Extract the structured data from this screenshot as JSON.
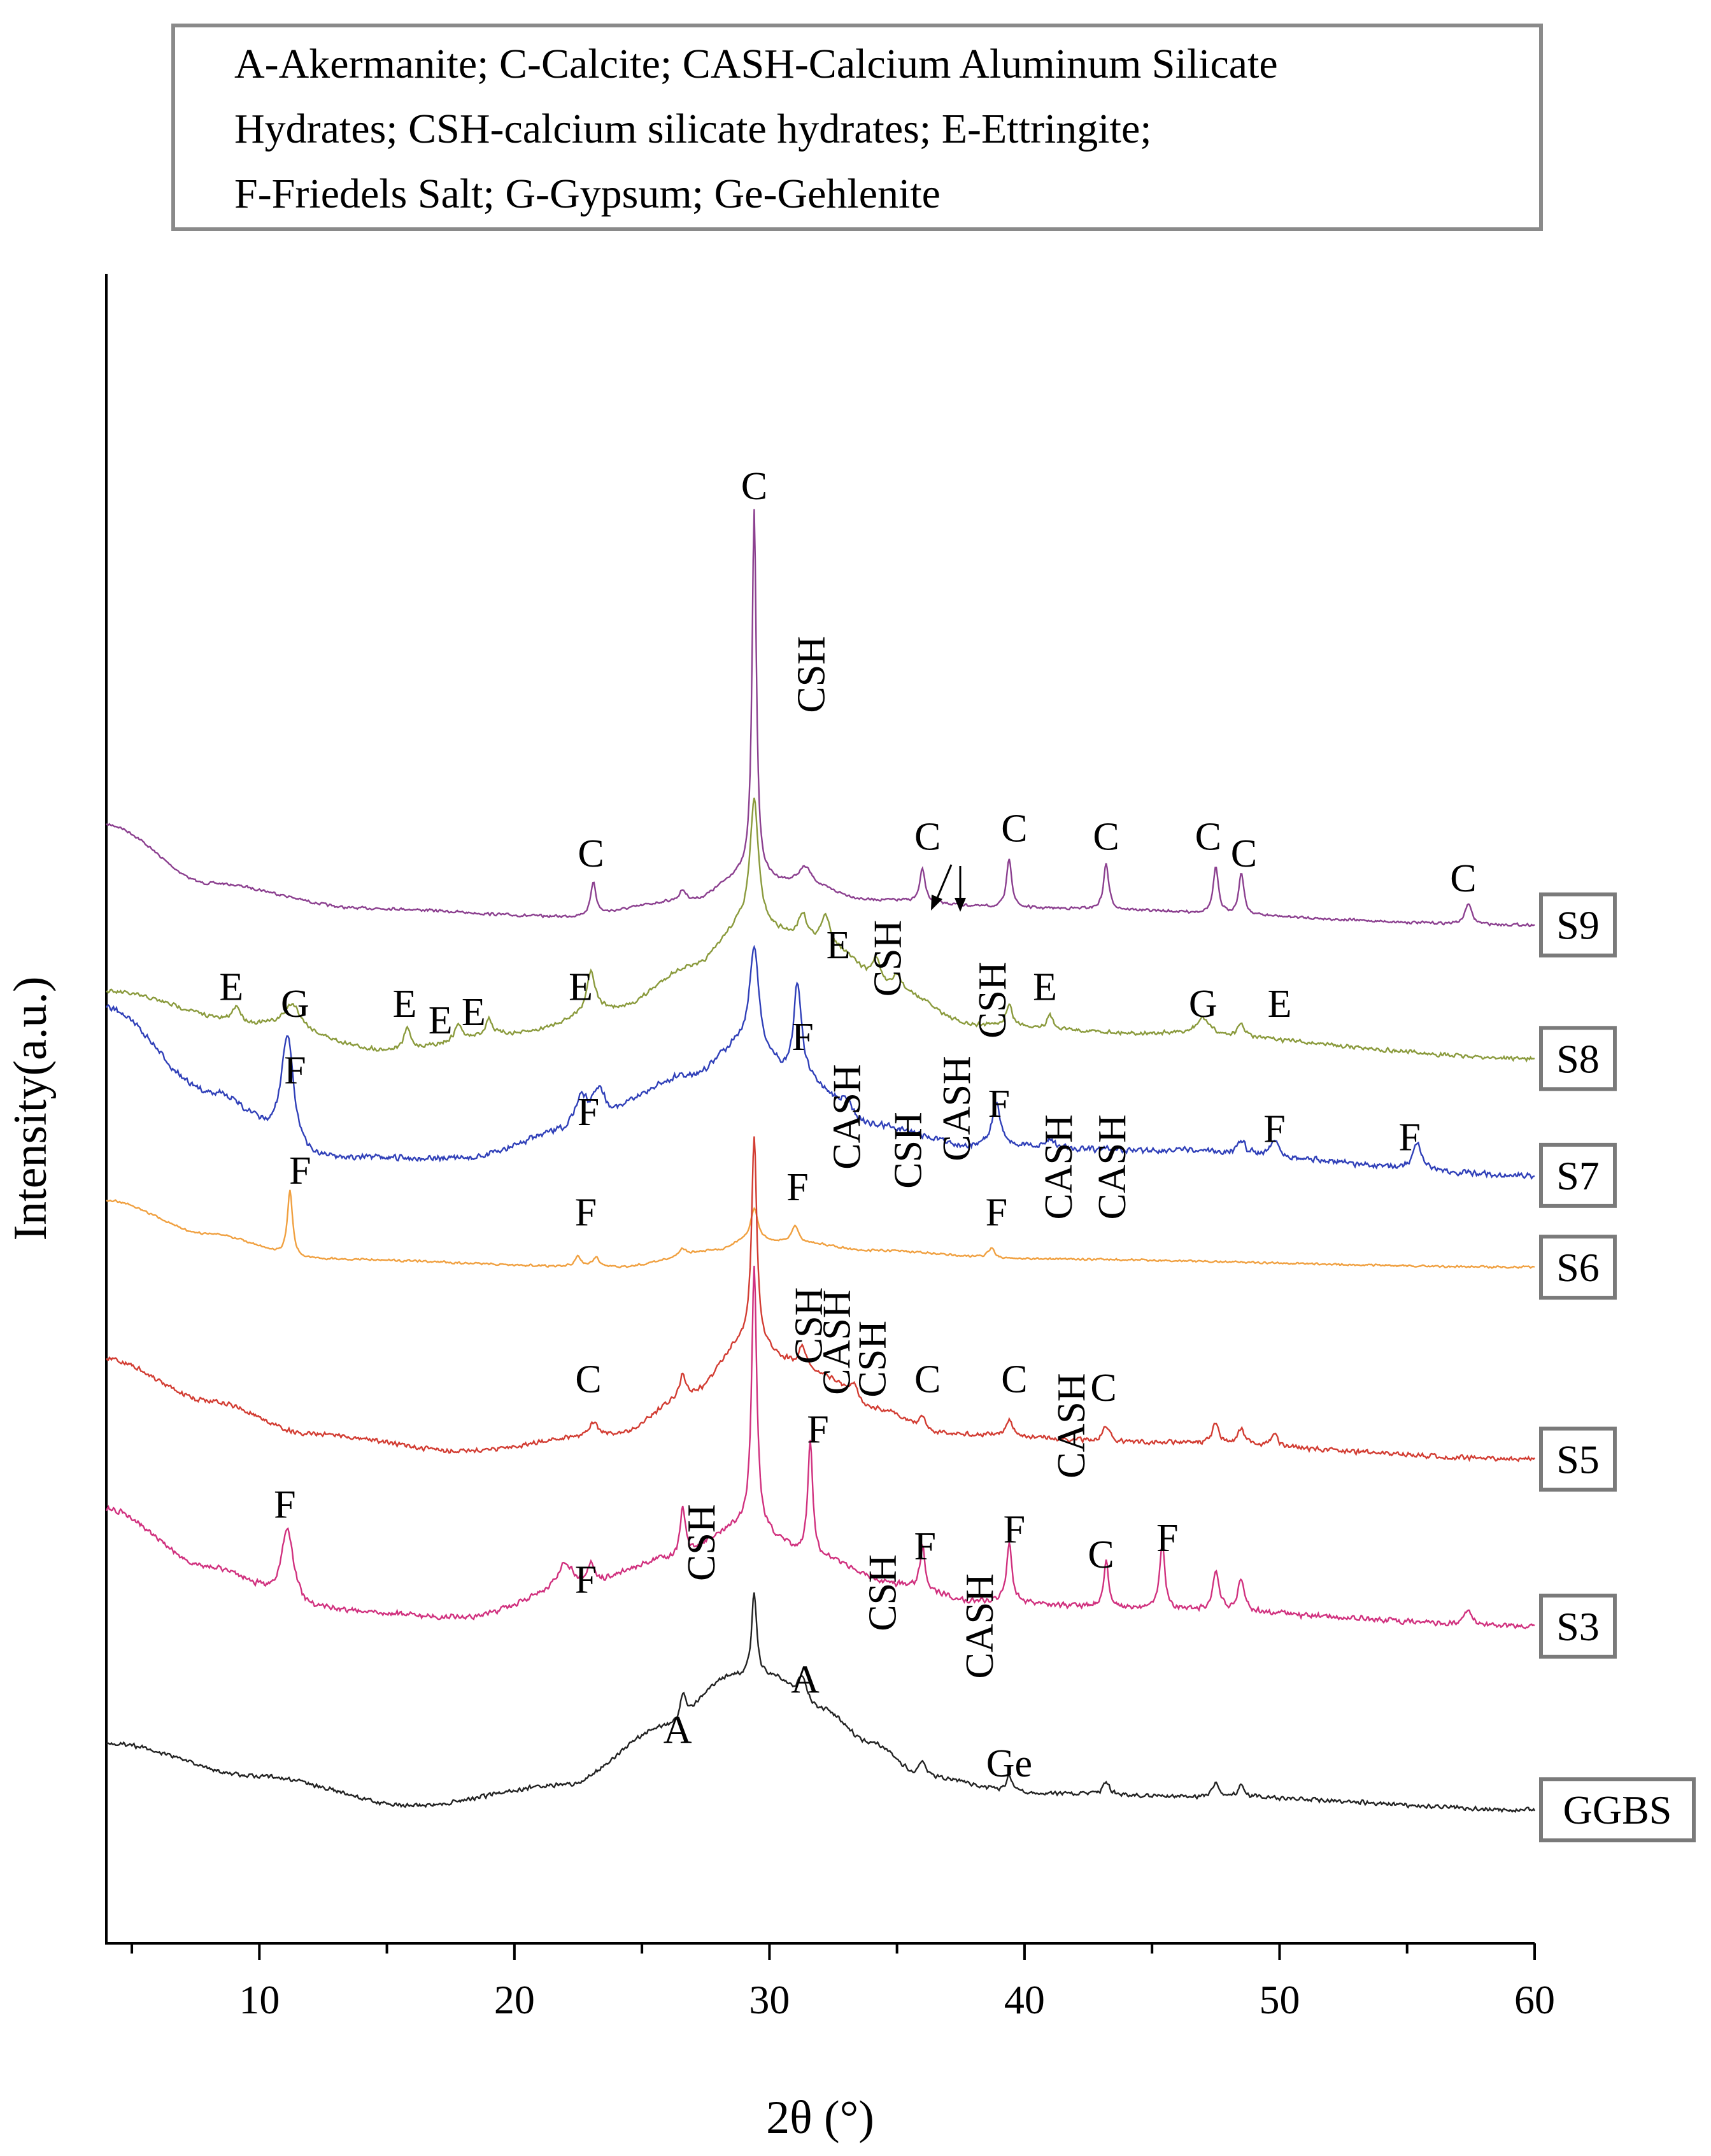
{
  "chart_data": {
    "type": "line",
    "title": "",
    "legend_box": [
      "A-Akermanite; C-Calcite;  CASH-Calcium Aluminum Silicate",
      "Hydrates; CSH-calcium silicate hydrates; E-Ettringite;",
      "F-Friedels Salt; G-Gypsum; Ge-Gehlenite"
    ],
    "xlabel": "2θ (°)",
    "ylabel": "Intensity(a.u.)",
    "xlim": [
      4,
      60
    ],
    "xticks": [
      10,
      20,
      30,
      40,
      50,
      60
    ],
    "y_ticks_shown": false,
    "colors": {
      "S9": "#8b3f8f",
      "S8": "#8a9a3c",
      "S7": "#2f3fb8",
      "S6": "#f0a040",
      "S5": "#d23c32",
      "S3": "#d0307e",
      "GGBS": "#222222"
    },
    "series": [
      {
        "name": "S9",
        "baseline": 0.78,
        "noise": 0.002,
        "background": [
          [
            4,
            0.12
          ],
          [
            8,
            0.05
          ],
          [
            14,
            0.02
          ],
          [
            22,
            0.01
          ],
          [
            27,
            0.03
          ],
          [
            29,
            0.06
          ],
          [
            31,
            0.05
          ],
          [
            34,
            0.03
          ],
          [
            40,
            0.02
          ],
          [
            60,
            0
          ]
        ],
        "peaks": [
          [
            23.1,
            0.04,
            0.12
          ],
          [
            26.6,
            0.012,
            0.15
          ],
          [
            29.4,
            0.44,
            0.1
          ],
          [
            31.4,
            0.02,
            0.3
          ],
          [
            36.0,
            0.04,
            0.12
          ],
          [
            39.4,
            0.06,
            0.12
          ],
          [
            43.2,
            0.055,
            0.12
          ],
          [
            47.5,
            0.055,
            0.12
          ],
          [
            48.5,
            0.05,
            0.12
          ],
          [
            57.4,
            0.025,
            0.15
          ]
        ]
      },
      {
        "name": "S8",
        "baseline": 0.94,
        "noise": 0.003,
        "background": [
          [
            4,
            0.08
          ],
          [
            10,
            0.04
          ],
          [
            15,
            0.01
          ],
          [
            20,
            0.03
          ],
          [
            24,
            0.06
          ],
          [
            27,
            0.11
          ],
          [
            29,
            0.16
          ],
          [
            32,
            0.14
          ],
          [
            35,
            0.08
          ],
          [
            38,
            0.04
          ],
          [
            45,
            0.03
          ],
          [
            60,
            0
          ]
        ],
        "peaks": [
          [
            9.1,
            0.02,
            0.2
          ],
          [
            11.3,
            0.03,
            0.4
          ],
          [
            15.8,
            0.025,
            0.15
          ],
          [
            17.8,
            0.02,
            0.15
          ],
          [
            19.0,
            0.02,
            0.15
          ],
          [
            23.0,
            0.05,
            0.2
          ],
          [
            29.4,
            0.15,
            0.2
          ],
          [
            31.3,
            0.03,
            0.2
          ],
          [
            32.2,
            0.03,
            0.2
          ],
          [
            34.2,
            0.03,
            0.2
          ],
          [
            35.0,
            0.02,
            0.2
          ],
          [
            39.4,
            0.025,
            0.15
          ],
          [
            41.0,
            0.015,
            0.15
          ],
          [
            47.0,
            0.02,
            0.3
          ],
          [
            48.5,
            0.015,
            0.15
          ]
        ]
      },
      {
        "name": "S7",
        "baseline": 1.08,
        "noise": 0.0045,
        "background": [
          [
            4,
            0.2
          ],
          [
            8,
            0.1
          ],
          [
            12,
            0.02
          ],
          [
            18,
            0.02
          ],
          [
            22,
            0.05
          ],
          [
            27,
            0.12
          ],
          [
            29,
            0.16
          ],
          [
            31,
            0.12
          ],
          [
            34,
            0.06
          ],
          [
            38,
            0.035
          ],
          [
            45,
            0.03
          ],
          [
            60,
            0
          ]
        ],
        "peaks": [
          [
            11.1,
            0.14,
            0.3
          ],
          [
            22.6,
            0.04,
            0.3
          ],
          [
            23.3,
            0.04,
            0.3
          ],
          [
            29.4,
            0.12,
            0.2
          ],
          [
            31.1,
            0.11,
            0.18
          ],
          [
            33.0,
            0.015,
            0.3
          ],
          [
            38.9,
            0.05,
            0.2
          ],
          [
            41.0,
            0.01,
            0.2
          ],
          [
            48.5,
            0.015,
            0.2
          ],
          [
            49.8,
            0.02,
            0.2
          ],
          [
            55.4,
            0.03,
            0.2
          ]
        ]
      },
      {
        "name": "S6",
        "baseline": 1.19,
        "noise": 0.0015,
        "background": [
          [
            4,
            0.08
          ],
          [
            8,
            0.04
          ],
          [
            12,
            0.01
          ],
          [
            24,
            0.0
          ],
          [
            28,
            0.02
          ],
          [
            29,
            0.03
          ],
          [
            31,
            0.03
          ],
          [
            34,
            0.02
          ],
          [
            40,
            0.01
          ],
          [
            60,
            0
          ]
        ],
        "peaks": [
          [
            11.2,
            0.08,
            0.12
          ],
          [
            22.5,
            0.012,
            0.15
          ],
          [
            23.2,
            0.012,
            0.15
          ],
          [
            26.6,
            0.008,
            0.15
          ],
          [
            29.4,
            0.04,
            0.18
          ],
          [
            31.0,
            0.02,
            0.15
          ],
          [
            38.7,
            0.012,
            0.15
          ]
        ]
      },
      {
        "name": "S5",
        "baseline": 1.42,
        "noise": 0.0035,
        "background": [
          [
            4,
            0.12
          ],
          [
            8,
            0.07
          ],
          [
            12,
            0.03
          ],
          [
            18,
            0.01
          ],
          [
            24,
            0.03
          ],
          [
            27,
            0.08
          ],
          [
            29,
            0.14
          ],
          [
            32,
            0.1
          ],
          [
            34,
            0.06
          ],
          [
            37,
            0.03
          ],
          [
            45,
            0.02
          ],
          [
            60,
            0
          ]
        ],
        "peaks": [
          [
            23.1,
            0.015,
            0.2
          ],
          [
            26.6,
            0.025,
            0.12
          ],
          [
            29.4,
            0.25,
            0.12
          ],
          [
            31.3,
            0.03,
            0.2
          ],
          [
            33.3,
            0.02,
            0.2
          ],
          [
            36.0,
            0.015,
            0.15
          ],
          [
            39.4,
            0.02,
            0.15
          ],
          [
            43.2,
            0.02,
            0.15
          ],
          [
            47.5,
            0.025,
            0.15
          ],
          [
            48.5,
            0.02,
            0.15
          ],
          [
            49.8,
            0.015,
            0.15
          ]
        ]
      },
      {
        "name": "S3",
        "baseline": 1.62,
        "noise": 0.004,
        "background": [
          [
            4,
            0.14
          ],
          [
            8,
            0.07
          ],
          [
            12,
            0.02
          ],
          [
            18,
            0.01
          ],
          [
            22,
            0.04
          ],
          [
            26,
            0.08
          ],
          [
            29,
            0.12
          ],
          [
            32,
            0.08
          ],
          [
            35,
            0.05
          ],
          [
            38,
            0.03
          ],
          [
            45,
            0.02
          ],
          [
            60,
            0
          ]
        ],
        "peaks": [
          [
            11.1,
            0.09,
            0.3
          ],
          [
            22.0,
            0.035,
            0.4
          ],
          [
            23.0,
            0.025,
            0.2
          ],
          [
            26.6,
            0.06,
            0.12
          ],
          [
            29.4,
            0.31,
            0.12
          ],
          [
            31.6,
            0.14,
            0.12
          ],
          [
            36.0,
            0.05,
            0.12
          ],
          [
            39.4,
            0.07,
            0.12
          ],
          [
            43.2,
            0.055,
            0.12
          ],
          [
            45.4,
            0.08,
            0.12
          ],
          [
            47.5,
            0.045,
            0.15
          ],
          [
            48.5,
            0.04,
            0.15
          ],
          [
            57.4,
            0.02,
            0.15
          ]
        ]
      },
      {
        "name": "GGBS",
        "baseline": 1.84,
        "noise": 0.003,
        "background": [
          [
            4,
            0.08
          ],
          [
            10,
            0.04
          ],
          [
            16,
            0.005
          ],
          [
            22,
            0.03
          ],
          [
            26,
            0.1
          ],
          [
            28.5,
            0.16
          ],
          [
            30,
            0.16
          ],
          [
            32,
            0.12
          ],
          [
            34,
            0.08
          ],
          [
            36,
            0.04
          ],
          [
            40,
            0.02
          ],
          [
            48,
            0.015
          ],
          [
            60,
            0
          ]
        ],
        "peaks": [
          [
            26.6,
            0.03,
            0.15
          ],
          [
            29.4,
            0.1,
            0.12
          ],
          [
            31.3,
            0.03,
            0.2
          ],
          [
            36.0,
            0.02,
            0.15
          ],
          [
            39.4,
            0.02,
            0.15
          ],
          [
            43.2,
            0.015,
            0.15
          ],
          [
            47.5,
            0.018,
            0.15
          ],
          [
            48.5,
            0.015,
            0.15
          ]
        ]
      }
    ],
    "annotations": [
      {
        "text": "C",
        "x": 23.0,
        "y": 0.71
      },
      {
        "text": "C",
        "x": 29.4,
        "y": 0.27
      },
      {
        "text": "CSH",
        "x": 31.6,
        "y": 0.48,
        "rotate": true
      },
      {
        "text": "C",
        "x": 36.2,
        "y": 0.69
      },
      {
        "text": "C",
        "x": 39.6,
        "y": 0.68
      },
      {
        "text": "C",
        "x": 43.2,
        "y": 0.69
      },
      {
        "text": "C",
        "x": 47.2,
        "y": 0.69
      },
      {
        "text": "C",
        "x": 48.6,
        "y": 0.71
      },
      {
        "text": "C",
        "x": 57.2,
        "y": 0.74
      },
      {
        "text": "E",
        "x": 8.9,
        "y": 0.87
      },
      {
        "text": "G",
        "x": 11.4,
        "y": 0.89
      },
      {
        "text": "E",
        "x": 15.7,
        "y": 0.89
      },
      {
        "text": "E",
        "x": 17.1,
        "y": 0.91
      },
      {
        "text": "E",
        "x": 18.4,
        "y": 0.9
      },
      {
        "text": "E",
        "x": 22.6,
        "y": 0.87
      },
      {
        "text": "E",
        "x": 32.7,
        "y": 0.82
      },
      {
        "text": "CSH",
        "x": 34.6,
        "y": 0.82,
        "rotate": true
      },
      {
        "text": "CSH",
        "x": 38.7,
        "y": 0.87,
        "rotate": true
      },
      {
        "text": "E",
        "x": 40.8,
        "y": 0.87
      },
      {
        "text": "G",
        "x": 47.0,
        "y": 0.89
      },
      {
        "text": "E",
        "x": 50.0,
        "y": 0.89
      },
      {
        "text": "F",
        "x": 11.4,
        "y": 0.97
      },
      {
        "text": "F",
        "x": 31.3,
        "y": 0.93
      },
      {
        "text": "CASH",
        "x": 33.0,
        "y": 1.01,
        "rotate": true
      },
      {
        "text": "CSH",
        "x": 35.4,
        "y": 1.05,
        "rotate": true
      },
      {
        "text": "CASH",
        "x": 37.3,
        "y": 1.0,
        "rotate": true
      },
      {
        "text": "F",
        "x": 22.9,
        "y": 1.02
      },
      {
        "text": "F",
        "x": 39.0,
        "y": 1.01
      },
      {
        "text": "CASH",
        "x": 41.3,
        "y": 1.07,
        "rotate": true
      },
      {
        "text": "CASH",
        "x": 43.4,
        "y": 1.07,
        "rotate": true
      },
      {
        "text": "F",
        "x": 49.8,
        "y": 1.04
      },
      {
        "text": "F",
        "x": 55.1,
        "y": 1.05
      },
      {
        "text": "F",
        "x": 11.6,
        "y": 1.09
      },
      {
        "text": "F",
        "x": 22.8,
        "y": 1.14
      },
      {
        "text": "F",
        "x": 31.1,
        "y": 1.11
      },
      {
        "text": "F",
        "x": 38.9,
        "y": 1.14
      },
      {
        "text": "CSH",
        "x": 31.5,
        "y": 1.26,
        "rotate": true
      },
      {
        "text": "CASH",
        "x": 32.6,
        "y": 1.28,
        "rotate": true
      },
      {
        "text": "CSH",
        "x": 34.0,
        "y": 1.3,
        "rotate": true
      },
      {
        "text": "C",
        "x": 22.9,
        "y": 1.34
      },
      {
        "text": "C",
        "x": 36.2,
        "y": 1.34
      },
      {
        "text": "C",
        "x": 39.6,
        "y": 1.34
      },
      {
        "text": "CASH",
        "x": 41.8,
        "y": 1.38,
        "rotate": true
      },
      {
        "text": "C",
        "x": 43.1,
        "y": 1.35
      },
      {
        "text": "F",
        "x": 31.9,
        "y": 1.4
      },
      {
        "text": "F",
        "x": 11.0,
        "y": 1.49
      },
      {
        "text": "CSH",
        "x": 27.3,
        "y": 1.52,
        "rotate": true
      },
      {
        "text": "CSH",
        "x": 34.4,
        "y": 1.58,
        "rotate": true
      },
      {
        "text": "F",
        "x": 36.1,
        "y": 1.54
      },
      {
        "text": "CASH",
        "x": 38.2,
        "y": 1.62,
        "rotate": true
      },
      {
        "text": "F",
        "x": 39.6,
        "y": 1.52
      },
      {
        "text": "C",
        "x": 43.0,
        "y": 1.55
      },
      {
        "text": "F",
        "x": 45.6,
        "y": 1.53
      },
      {
        "text": "F",
        "x": 22.8,
        "y": 1.58
      },
      {
        "text": "A",
        "x": 31.4,
        "y": 1.7
      },
      {
        "text": "A",
        "x": 26.4,
        "y": 1.76
      },
      {
        "text": "Ge",
        "x": 39.4,
        "y": 1.8
      }
    ]
  }
}
